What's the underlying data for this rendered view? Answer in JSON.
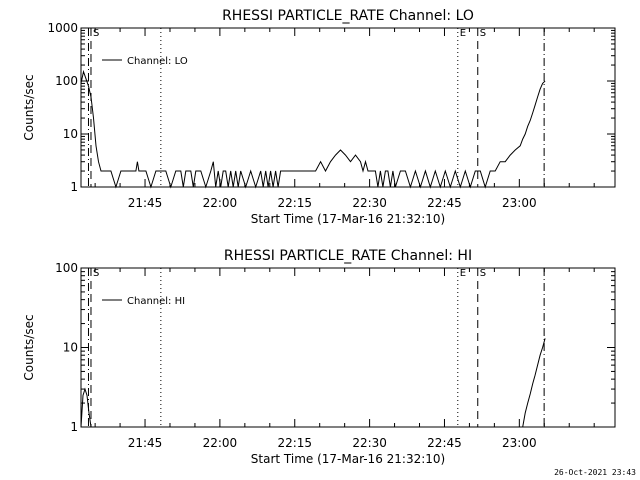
{
  "footer": {
    "timestamp": "26-Oct-2021 23:43"
  },
  "chart_data": [
    {
      "type": "line",
      "title": "RHESSI PARTICLE_RATE Channel: LO",
      "xlabel": "Start Time (17-Mar-16 21:32:10)",
      "ylabel": "Counts/sec",
      "y_scale": "log",
      "ylim": [
        1,
        1000
      ],
      "xlim_minutes": [
        0,
        107
      ],
      "x_ticks": [
        {
          "m": 12.83,
          "label": "21:45"
        },
        {
          "m": 27.83,
          "label": "22:00"
        },
        {
          "m": 42.83,
          "label": "22:15"
        },
        {
          "m": 57.83,
          "label": "22:30"
        },
        {
          "m": 72.83,
          "label": "22:45"
        },
        {
          "m": 87.83,
          "label": "23:00"
        }
      ],
      "y_ticks": [
        {
          "v": 1,
          "label": "1"
        },
        {
          "v": 10,
          "label": "10"
        },
        {
          "v": 100,
          "label": "100"
        },
        {
          "v": 1000,
          "label": "1000"
        }
      ],
      "legend": {
        "label": "Channel: LO",
        "position": "top-left"
      },
      "markers": [
        {
          "m": 1.5,
          "style": "dash-dot",
          "label": ""
        },
        {
          "m": 2.0,
          "style": "dashed",
          "label": "S"
        },
        {
          "m": 16.0,
          "style": "dotted",
          "label": ""
        },
        {
          "m": 75.5,
          "style": "dotted",
          "label": "E"
        },
        {
          "m": 79.5,
          "style": "dashed",
          "label": "S"
        },
        {
          "m": 92.8,
          "style": "dash-dot",
          "label": ""
        }
      ],
      "series": [
        {
          "name": "Channel: LO",
          "x": [
            0,
            0.5,
            1,
            1.5,
            2,
            2.5,
            3,
            3.5,
            4,
            5,
            6,
            7,
            8,
            9,
            10,
            11,
            11.3,
            11.6,
            12,
            13,
            14,
            15,
            16,
            17,
            18,
            19,
            20,
            20.5,
            21,
            22,
            22.5,
            23,
            23.5,
            24,
            25,
            26,
            26.5,
            27,
            27.5,
            28,
            28.5,
            29,
            29.5,
            30,
            30.5,
            31,
            31.5,
            32,
            33,
            34,
            35,
            36,
            36.5,
            37,
            37.5,
            38,
            38.5,
            39,
            39.5,
            40,
            41,
            42,
            43,
            44,
            45,
            46,
            47,
            48,
            49,
            50,
            51,
            52,
            53,
            54,
            55,
            56,
            56.5,
            57,
            57.5,
            58,
            58.5,
            59,
            59.5,
            60,
            60.5,
            61,
            61.5,
            62,
            62.5,
            63,
            64,
            65,
            66,
            67,
            68,
            69,
            70,
            71,
            72,
            73,
            74,
            75,
            76,
            77,
            78,
            79,
            80,
            81,
            82,
            83,
            84,
            85,
            86,
            87,
            88,
            88.5,
            89,
            89.5,
            90,
            90.5,
            91,
            91.5,
            92,
            92.5,
            93
          ],
          "y": [
            90,
            150,
            110,
            80,
            50,
            20,
            6,
            3,
            2,
            2,
            2,
            1,
            2,
            2,
            2,
            2,
            3,
            2,
            2,
            2,
            1,
            2,
            2,
            2,
            1,
            2,
            2,
            1,
            2,
            2,
            1,
            2,
            2,
            2,
            1,
            2,
            3,
            1,
            2,
            1,
            2,
            2,
            1,
            2,
            1,
            2,
            1,
            2,
            1,
            2,
            1,
            2,
            1,
            2,
            1,
            2,
            1,
            2,
            1,
            2,
            2,
            2,
            2,
            2,
            2,
            2,
            2,
            3,
            2,
            3,
            4,
            5,
            4,
            3,
            4,
            3,
            2,
            3,
            2,
            2,
            2,
            2,
            1,
            2,
            1,
            2,
            2,
            1,
            2,
            1,
            2,
            2,
            1,
            2,
            1,
            2,
            1,
            2,
            1,
            2,
            1,
            2,
            1,
            2,
            1,
            2,
            2,
            1,
            2,
            2,
            3,
            3,
            4,
            5,
            6,
            8,
            10,
            14,
            18,
            25,
            35,
            50,
            70,
            90,
            100
          ]
        }
      ]
    },
    {
      "type": "line",
      "title": "RHESSI PARTICLE_RATE Channel: HI",
      "xlabel": "Start Time (17-Mar-16 21:32:10)",
      "ylabel": "Counts/sec",
      "y_scale": "log",
      "ylim": [
        1,
        100
      ],
      "xlim_minutes": [
        0,
        107
      ],
      "x_ticks": [
        {
          "m": 12.83,
          "label": "21:45"
        },
        {
          "m": 27.83,
          "label": "22:00"
        },
        {
          "m": 42.83,
          "label": "22:15"
        },
        {
          "m": 57.83,
          "label": "22:30"
        },
        {
          "m": 72.83,
          "label": "22:45"
        },
        {
          "m": 87.83,
          "label": "23:00"
        }
      ],
      "y_ticks": [
        {
          "v": 1,
          "label": "1"
        },
        {
          "v": 10,
          "label": "10"
        },
        {
          "v": 100,
          "label": "100"
        }
      ],
      "legend": {
        "label": "Channel: HI",
        "position": "top-left"
      },
      "markers": [
        {
          "m": 1.5,
          "style": "dash-dot",
          "label": ""
        },
        {
          "m": 2.0,
          "style": "dashed",
          "label": "S"
        },
        {
          "m": 16.0,
          "style": "dotted",
          "label": ""
        },
        {
          "m": 75.5,
          "style": "dotted",
          "label": "E"
        },
        {
          "m": 79.5,
          "style": "dashed",
          "label": "S"
        },
        {
          "m": 92.8,
          "style": "dash-dot",
          "label": ""
        }
      ],
      "series": [
        {
          "name": "Channel: HI",
          "x": [
            0,
            0.4,
            0.8,
            1.2,
            1.6,
            2.0,
            88.5,
            89.0,
            89.5,
            90.0,
            90.5,
            91.0,
            91.5,
            92.0,
            92.5,
            93.0
          ],
          "y": [
            1,
            2.5,
            3,
            2.5,
            1.5,
            1,
            1,
            1.5,
            2,
            2.6,
            3.5,
            4.5,
            6,
            8,
            10,
            13
          ]
        }
      ]
    }
  ]
}
